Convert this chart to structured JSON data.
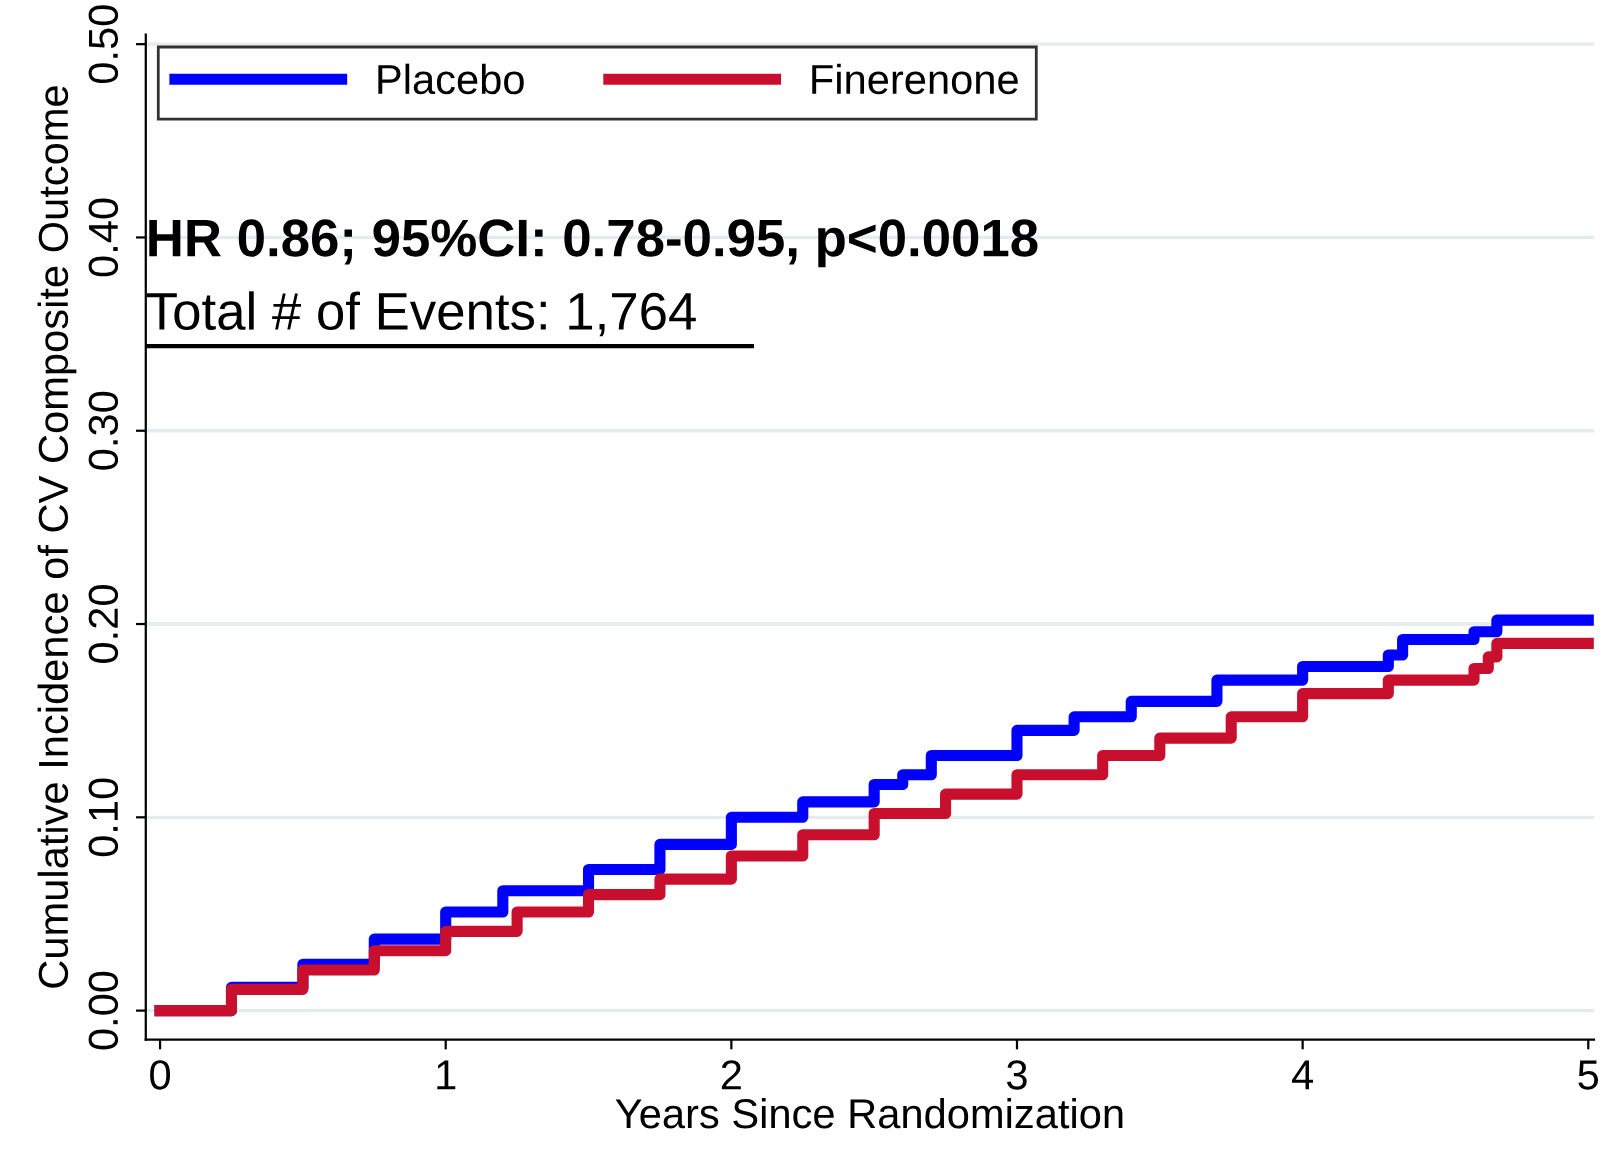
{
  "chart_data": {
    "type": "step",
    "xlabel": "Years Since Randomization",
    "ylabel": "Cumulative Incidence of CV Composite Outcome",
    "annotations": [
      "HR 0.86; 95%CI: 0.78-0.95, p<0.0018",
      "Total # of Events: 1,764"
    ],
    "series": [
      {
        "name": "Placebo",
        "color": "#0000ff",
        "x": [
          0,
          0.25,
          0.5,
          0.75,
          1.0,
          1.2,
          1.5,
          1.75,
          2.0,
          2.25,
          2.5,
          2.6,
          2.7,
          3.0,
          3.2,
          3.4,
          3.7,
          4.0,
          4.3,
          4.35,
          4.6,
          4.68,
          5.0
        ],
        "values": [
          0,
          0.012,
          0.024,
          0.037,
          0.051,
          0.062,
          0.073,
          0.086,
          0.1,
          0.108,
          0.117,
          0.122,
          0.132,
          0.145,
          0.152,
          0.16,
          0.171,
          0.178,
          0.184,
          0.192,
          0.196,
          0.202,
          0.202
        ]
      },
      {
        "name": "Finerenone",
        "color": "#c8102e",
        "x": [
          0,
          0.25,
          0.5,
          0.75,
          1.0,
          1.25,
          1.5,
          1.75,
          2.0,
          2.25,
          2.5,
          2.75,
          3.0,
          3.3,
          3.5,
          3.75,
          4.0,
          4.3,
          4.6,
          4.65,
          4.68,
          5.0
        ],
        "values": [
          0,
          0.011,
          0.021,
          0.031,
          0.041,
          0.051,
          0.06,
          0.068,
          0.08,
          0.091,
          0.102,
          0.112,
          0.122,
          0.132,
          0.141,
          0.152,
          0.164,
          0.171,
          0.177,
          0.183,
          0.19,
          0.19
        ]
      }
    ],
    "xlim": [
      -0.05,
      5.02
    ],
    "xticks": [
      0,
      1,
      2,
      3,
      4,
      5
    ],
    "ylim": [
      -0.015,
      0.505
    ],
    "yticks": [
      {
        "value": 0,
        "label": "0.00"
      },
      {
        "value": 0.1,
        "label": "0.10"
      },
      {
        "value": 0.2,
        "label": "0.20"
      },
      {
        "value": 0.3,
        "label": "0.30"
      },
      {
        "value": 0.4,
        "label": "0.40"
      },
      {
        "value": 0.5,
        "label": "0.50"
      }
    ],
    "grid": "y",
    "legend": "top left",
    "line_style": "solid",
    "marker": "none"
  }
}
